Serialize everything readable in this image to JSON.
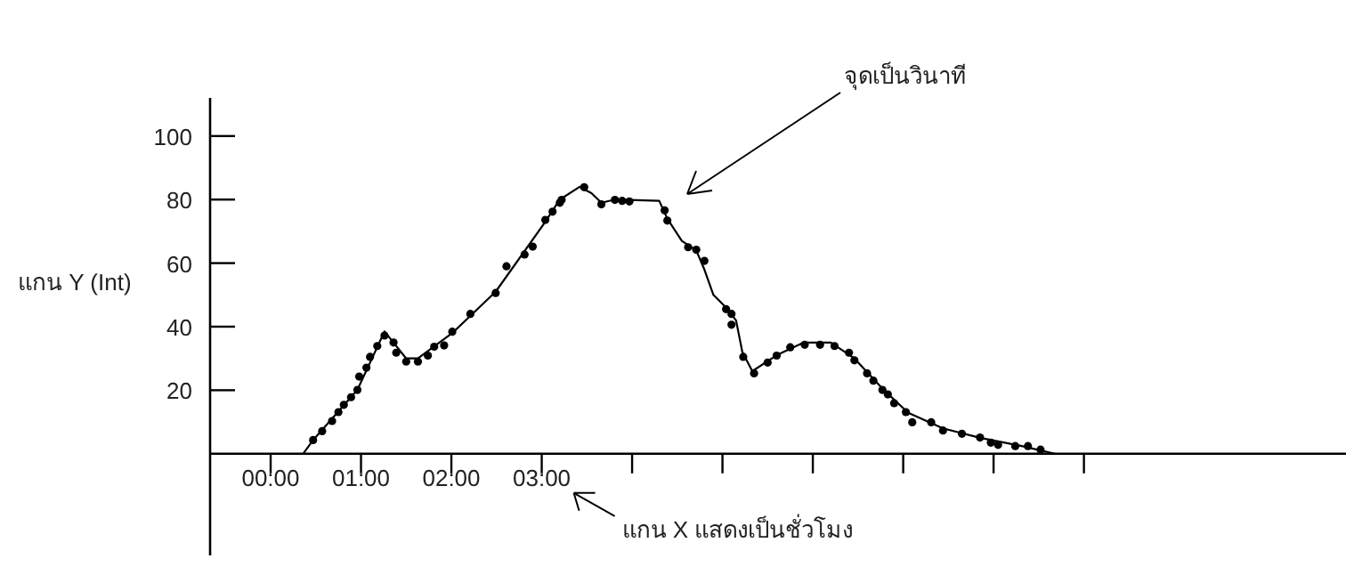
{
  "chart_data": {
    "type": "scatter",
    "ylabel": "แกน Y (Int)",
    "annotations": [
      "จุดเป็นวินาที",
      "แกน X แสดงเป็นชั่วโมง"
    ],
    "xlim": [
      -0.67,
      11.9
    ],
    "ylim": [
      -32,
      112
    ],
    "xticks": [
      {
        "value": 0,
        "label": "00:00"
      },
      {
        "value": 1,
        "label": "01:00"
      },
      {
        "value": 2,
        "label": "02:00"
      },
      {
        "value": 3,
        "label": "03:00"
      },
      {
        "value": 4,
        "label": null
      },
      {
        "value": 5,
        "label": null
      },
      {
        "value": 6,
        "label": null
      },
      {
        "value": 7,
        "label": null
      },
      {
        "value": 8,
        "label": null
      },
      {
        "value": 9,
        "label": null
      }
    ],
    "yticks": [
      20,
      40,
      60,
      80,
      100
    ],
    "grid": false,
    "series": [
      {
        "marker": "circle",
        "color": "#000000",
        "x": [
          0.47,
          0.57,
          0.68,
          0.75,
          0.81,
          0.89,
          0.96,
          0.98,
          1.06,
          1.1,
          1.18,
          1.26,
          1.36,
          1.39,
          1.5,
          1.63,
          1.74,
          1.81,
          1.92,
          2.01,
          2.21,
          2.49,
          2.61,
          2.81,
          2.9,
          3.04,
          3.12,
          3.2,
          3.22,
          3.47,
          3.66,
          3.81,
          3.89,
          3.97,
          4.36,
          4.39,
          4.62,
          4.71,
          4.8,
          5.04,
          5.1,
          5.1,
          5.23,
          5.35,
          5.5,
          5.6,
          5.75,
          5.91,
          6.08,
          6.24,
          6.4,
          6.46,
          6.6,
          6.67,
          6.77,
          6.83,
          6.9,
          7.03,
          7.1,
          7.31,
          7.44,
          7.65,
          7.85,
          7.97,
          8.05,
          8.24,
          8.38,
          8.52
        ],
        "values": [
          4.3,
          7.1,
          10.3,
          13.1,
          15.4,
          17.8,
          20.1,
          24.3,
          27.1,
          30.5,
          33.9,
          37.2,
          35.0,
          31.8,
          29.0,
          29.0,
          30.9,
          33.7,
          34.1,
          38.4,
          44.0,
          50.6,
          59.0,
          62.7,
          65.2,
          73.6,
          76.2,
          79.0,
          79.9,
          83.9,
          78.5,
          79.9,
          79.6,
          79.4,
          76.6,
          73.4,
          65.0,
          64.2,
          60.7,
          45.5,
          44.0,
          40.6,
          30.5,
          25.3,
          28.7,
          30.9,
          33.5,
          34.3,
          34.3,
          33.9,
          31.8,
          29.4,
          25.3,
          23.0,
          20.1,
          18.7,
          15.9,
          13.1,
          9.9,
          9.9,
          7.3,
          6.3,
          5.1,
          3.5,
          2.8,
          2.4,
          2.4,
          1.3
        ]
      },
      {
        "type": "line",
        "color": "#000000",
        "x": [
          0.36,
          0.47,
          0.96,
          1.26,
          1.36,
          1.5,
          1.63,
          2.01,
          2.49,
          3.04,
          3.2,
          3.42,
          3.55,
          3.66,
          3.81,
          4.3,
          4.39,
          4.55,
          4.71,
          4.8,
          4.9,
          5.04,
          5.15,
          5.22,
          5.33,
          5.6,
          5.9,
          6.2,
          6.46,
          6.77,
          7.05,
          7.44,
          7.85,
          8.3,
          8.68
        ],
        "values": [
          0,
          4.3,
          20.1,
          38.5,
          35,
          30,
          30,
          38,
          51,
          73,
          80,
          84,
          82,
          79,
          80,
          79.6,
          74,
          67,
          64,
          58,
          50,
          46,
          42,
          32,
          26,
          31,
          35,
          35,
          30,
          20.5,
          13,
          8,
          5,
          2.5,
          0
        ]
      }
    ]
  }
}
